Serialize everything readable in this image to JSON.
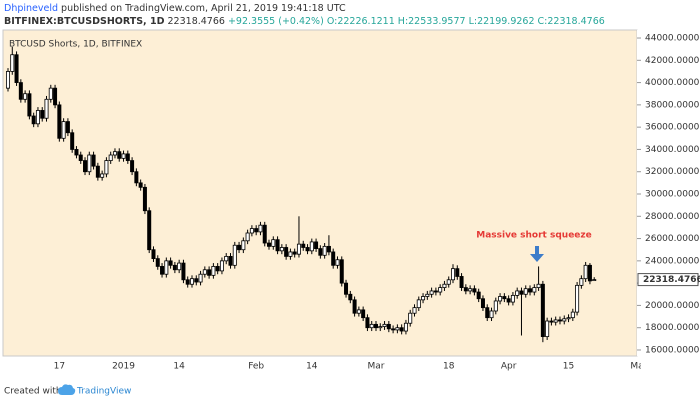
{
  "header": {
    "author": "Dhpineveld",
    "published": "published on TradingView.com, April 21, 2019 19:41:18 UTC",
    "symbol": "BITFINEX:BTCUSDSHORTS, 1D",
    "change": "+92.3555 (+0.42%)",
    "open": "O:22226.1211",
    "high": "H:22533.9577",
    "low": "L:22199.9262",
    "close": "C:22318.4766"
  },
  "chart_data": {
    "type": "candlestick",
    "title": "BTCUSD Shorts, 1D, BITFINEX",
    "categories": [
      null,
      null,
      null,
      null,
      null,
      null,
      null,
      null,
      null,
      null,
      null,
      null,
      "17",
      null,
      null,
      null,
      null,
      null,
      null,
      null,
      null,
      null,
      null,
      null,
      null,
      null,
      null,
      "2019",
      null,
      null,
      null,
      null,
      null,
      null,
      null,
      null,
      null,
      null,
      null,
      null,
      "14",
      null,
      null,
      null,
      null,
      null,
      null,
      null,
      null,
      null,
      null,
      null,
      null,
      null,
      null,
      null,
      null,
      null,
      "Feb",
      null,
      null,
      null,
      null,
      null,
      null,
      null,
      null,
      null,
      null,
      null,
      null,
      "14",
      null,
      null,
      null,
      null,
      null,
      null,
      null,
      null,
      null,
      null,
      null,
      null,
      null,
      null,
      "Mar",
      null,
      null,
      null,
      null,
      null,
      null,
      null,
      null,
      null,
      null,
      null,
      null,
      null,
      null,
      null,
      null,
      "18",
      null,
      null,
      null,
      null,
      null,
      null,
      null,
      null,
      null,
      null,
      null,
      null,
      null,
      "Apr",
      null,
      null,
      null,
      null,
      null,
      null,
      null,
      null,
      null,
      null,
      null,
      null,
      null,
      "15",
      null,
      null,
      null,
      null,
      null,
      null,
      null,
      null,
      null,
      null,
      null,
      null,
      null,
      null,
      null,
      "Ma"
    ],
    "open": [
      39500,
      41000,
      42500,
      40000,
      38500,
      39000,
      37000,
      36300,
      37500,
      36800,
      38500,
      39500,
      38000,
      35000,
      36500,
      35500,
      34000,
      33500,
      33000,
      32000,
      33500,
      32500,
      31500,
      31800,
      33000,
      33500,
      33800,
      33200,
      33600,
      33000,
      32000,
      31000,
      30600,
      28500,
      25000,
      24200,
      23500,
      22800,
      24000,
      23600,
      23200,
      23800,
      22300,
      21900,
      22400,
      22100,
      22800,
      23200,
      22700,
      23500,
      23100,
      24000,
      24400,
      23600,
      25400,
      25000,
      25800,
      26500,
      26900,
      26600,
      27200,
      25600,
      25300,
      25900,
      24900,
      25200,
      24400,
      24800,
      24600,
      25500,
      25200,
      24900,
      25700,
      25100,
      24500,
      25300,
      24800,
      23600,
      24100,
      22000,
      21000,
      20500,
      19300,
      19600,
      18900,
      18000,
      18300,
      18000,
      18100,
      18300,
      17900,
      17800,
      18000,
      17700,
      18400,
      19300,
      19800,
      20500,
      20800,
      21000,
      21300,
      21200,
      21600,
      21900,
      22300,
      23300,
      22600,
      21600,
      21300,
      21500,
      21200,
      20600,
      19800,
      18900,
      19500,
      20400,
      20800,
      20600,
      20300,
      20900,
      21300,
      21000,
      21500,
      21200,
      21600,
      21900,
      17200,
      18600,
      18500,
      18700,
      18600,
      18800,
      18900,
      19400,
      21800,
      22400,
      23600,
      22226.1211,
      null,
      null,
      null,
      null,
      null,
      null,
      null,
      null,
      null,
      null
    ],
    "high": [
      41300,
      43200,
      42800,
      40300,
      39300,
      39300,
      37300,
      37800,
      37800,
      38800,
      39800,
      39800,
      38300,
      36800,
      36800,
      35800,
      34300,
      33800,
      33300,
      33800,
      33800,
      32800,
      32100,
      33300,
      33800,
      34100,
      34100,
      33900,
      33900,
      33300,
      32300,
      31300,
      30900,
      28800,
      25300,
      24500,
      23800,
      24300,
      24300,
      23900,
      24100,
      24100,
      22600,
      22700,
      22700,
      23100,
      23500,
      23500,
      23800,
      23800,
      24300,
      24700,
      24700,
      25700,
      25700,
      26100,
      26800,
      27200,
      27200,
      27500,
      27500,
      25900,
      26200,
      26200,
      25500,
      25500,
      25100,
      25100,
      28000,
      25800,
      25500,
      26000,
      26000,
      25400,
      25600,
      26300,
      25100,
      24400,
      24400,
      22300,
      21300,
      20800,
      19900,
      19900,
      19200,
      18600,
      18600,
      18400,
      18600,
      18600,
      18200,
      18300,
      18300,
      18700,
      19600,
      20100,
      20800,
      21100,
      21300,
      21600,
      21600,
      21900,
      22200,
      22600,
      23700,
      23600,
      22900,
      21900,
      21800,
      21800,
      21500,
      20900,
      20100,
      19800,
      20700,
      21100,
      21100,
      20900,
      21200,
      21600,
      21600,
      21800,
      21800,
      21900,
      23500,
      22200,
      18900,
      18900,
      19000,
      19000,
      19100,
      19200,
      19700,
      22100,
      22700,
      23900,
      23800,
      22533.9577,
      null,
      null,
      null,
      null,
      null,
      null,
      null,
      null,
      null,
      null
    ],
    "low": [
      39200,
      40700,
      39700,
      38200,
      38200,
      36700,
      36000,
      36000,
      36500,
      36500,
      38200,
      37700,
      34700,
      34700,
      35200,
      33700,
      33200,
      32700,
      31700,
      31700,
      32200,
      31200,
      31200,
      31500,
      32700,
      33200,
      32900,
      32900,
      32700,
      31700,
      30700,
      30300,
      28200,
      24700,
      23900,
      23200,
      22500,
      22500,
      23300,
      22900,
      22900,
      22000,
      21600,
      21600,
      21800,
      21800,
      22500,
      22400,
      22400,
      22800,
      22800,
      23700,
      23300,
      23300,
      24700,
      24700,
      25500,
      26200,
      26300,
      26300,
      25300,
      25000,
      25000,
      24600,
      24600,
      24100,
      24100,
      24300,
      24300,
      24900,
      24600,
      24600,
      24800,
      24200,
      24200,
      24500,
      23300,
      23300,
      21700,
      20700,
      20200,
      19000,
      19000,
      18600,
      17700,
      17700,
      17700,
      17700,
      17800,
      17600,
      17500,
      17500,
      17400,
      17400,
      18100,
      19000,
      19500,
      20200,
      20500,
      20700,
      20900,
      20900,
      21300,
      21600,
      22000,
      22300,
      21300,
      21000,
      21000,
      20900,
      20300,
      19500,
      18600,
      18600,
      19200,
      20100,
      20300,
      20000,
      20000,
      20600,
      17300,
      20700,
      20900,
      20900,
      21300,
      16700,
      16900,
      18200,
      18200,
      18300,
      18300,
      18500,
      18600,
      19100,
      21500,
      22100,
      21900,
      22199.9262,
      null,
      null,
      null,
      null,
      null,
      null,
      null,
      null,
      null,
      null
    ],
    "close": [
      41000,
      42500,
      40000,
      38500,
      39000,
      37000,
      36300,
      37500,
      36800,
      38500,
      39500,
      38000,
      35000,
      36500,
      35500,
      34000,
      33500,
      33000,
      32000,
      33500,
      32500,
      31500,
      31800,
      33000,
      33500,
      33800,
      33200,
      33600,
      33000,
      32000,
      31000,
      30600,
      28500,
      25000,
      24200,
      23500,
      22800,
      24000,
      23600,
      23200,
      23800,
      22300,
      21900,
      22400,
      22100,
      22800,
      23200,
      22700,
      23500,
      23100,
      24000,
      24400,
      23600,
      25400,
      25000,
      25800,
      26500,
      26900,
      26600,
      27200,
      25600,
      25300,
      25900,
      24900,
      25200,
      24400,
      24800,
      24600,
      25500,
      25200,
      24900,
      25700,
      25100,
      24500,
      25300,
      24800,
      23600,
      24100,
      22000,
      21000,
      20500,
      19300,
      19600,
      18900,
      18000,
      18300,
      18000,
      18100,
      18300,
      17900,
      17800,
      18000,
      17700,
      18400,
      19300,
      19800,
      20500,
      20800,
      21000,
      21300,
      21200,
      21600,
      21900,
      22300,
      23300,
      22600,
      21600,
      21300,
      21500,
      21200,
      20600,
      19800,
      18900,
      19500,
      20400,
      20800,
      20600,
      20300,
      20900,
      21300,
      21000,
      21500,
      21200,
      21600,
      21900,
      17200,
      18600,
      18500,
      18700,
      18600,
      18800,
      18900,
      19400,
      21800,
      22400,
      23600,
      22200,
      22318.4766,
      null,
      null,
      null,
      null,
      null,
      null,
      null,
      null,
      null,
      null
    ],
    "up_color": "#ffffff",
    "down_color": "#000000",
    "ylim": [
      15460,
      44720
    ],
    "yticks": [
      {
        "value": 44000,
        "label": "44000.0000"
      },
      {
        "value": 42000,
        "label": "42000.0000"
      },
      {
        "value": 40000,
        "label": "40000.0000"
      },
      {
        "value": 38000,
        "label": "38000.0000"
      },
      {
        "value": 36000,
        "label": "36000.0000"
      },
      {
        "value": 34000,
        "label": "34000.0000"
      },
      {
        "value": 32000,
        "label": "32000.0000"
      },
      {
        "value": 30000,
        "label": "30000.0000"
      },
      {
        "value": 28000,
        "label": "28000.0000"
      },
      {
        "value": 26000,
        "label": "26000.0000"
      },
      {
        "value": 24000,
        "label": "24000.0000"
      },
      {
        "value": 22000,
        "label": "22000.0000"
      },
      {
        "value": 20000,
        "label": "20000.0000"
      },
      {
        "value": 18000,
        "label": "18000.0000"
      },
      {
        "value": 16000,
        "label": "16000.0000"
      }
    ],
    "grid": false,
    "annotation": "Massive short squeeze"
  },
  "footer": {
    "created": "Created with",
    "brand": "TradingView"
  }
}
